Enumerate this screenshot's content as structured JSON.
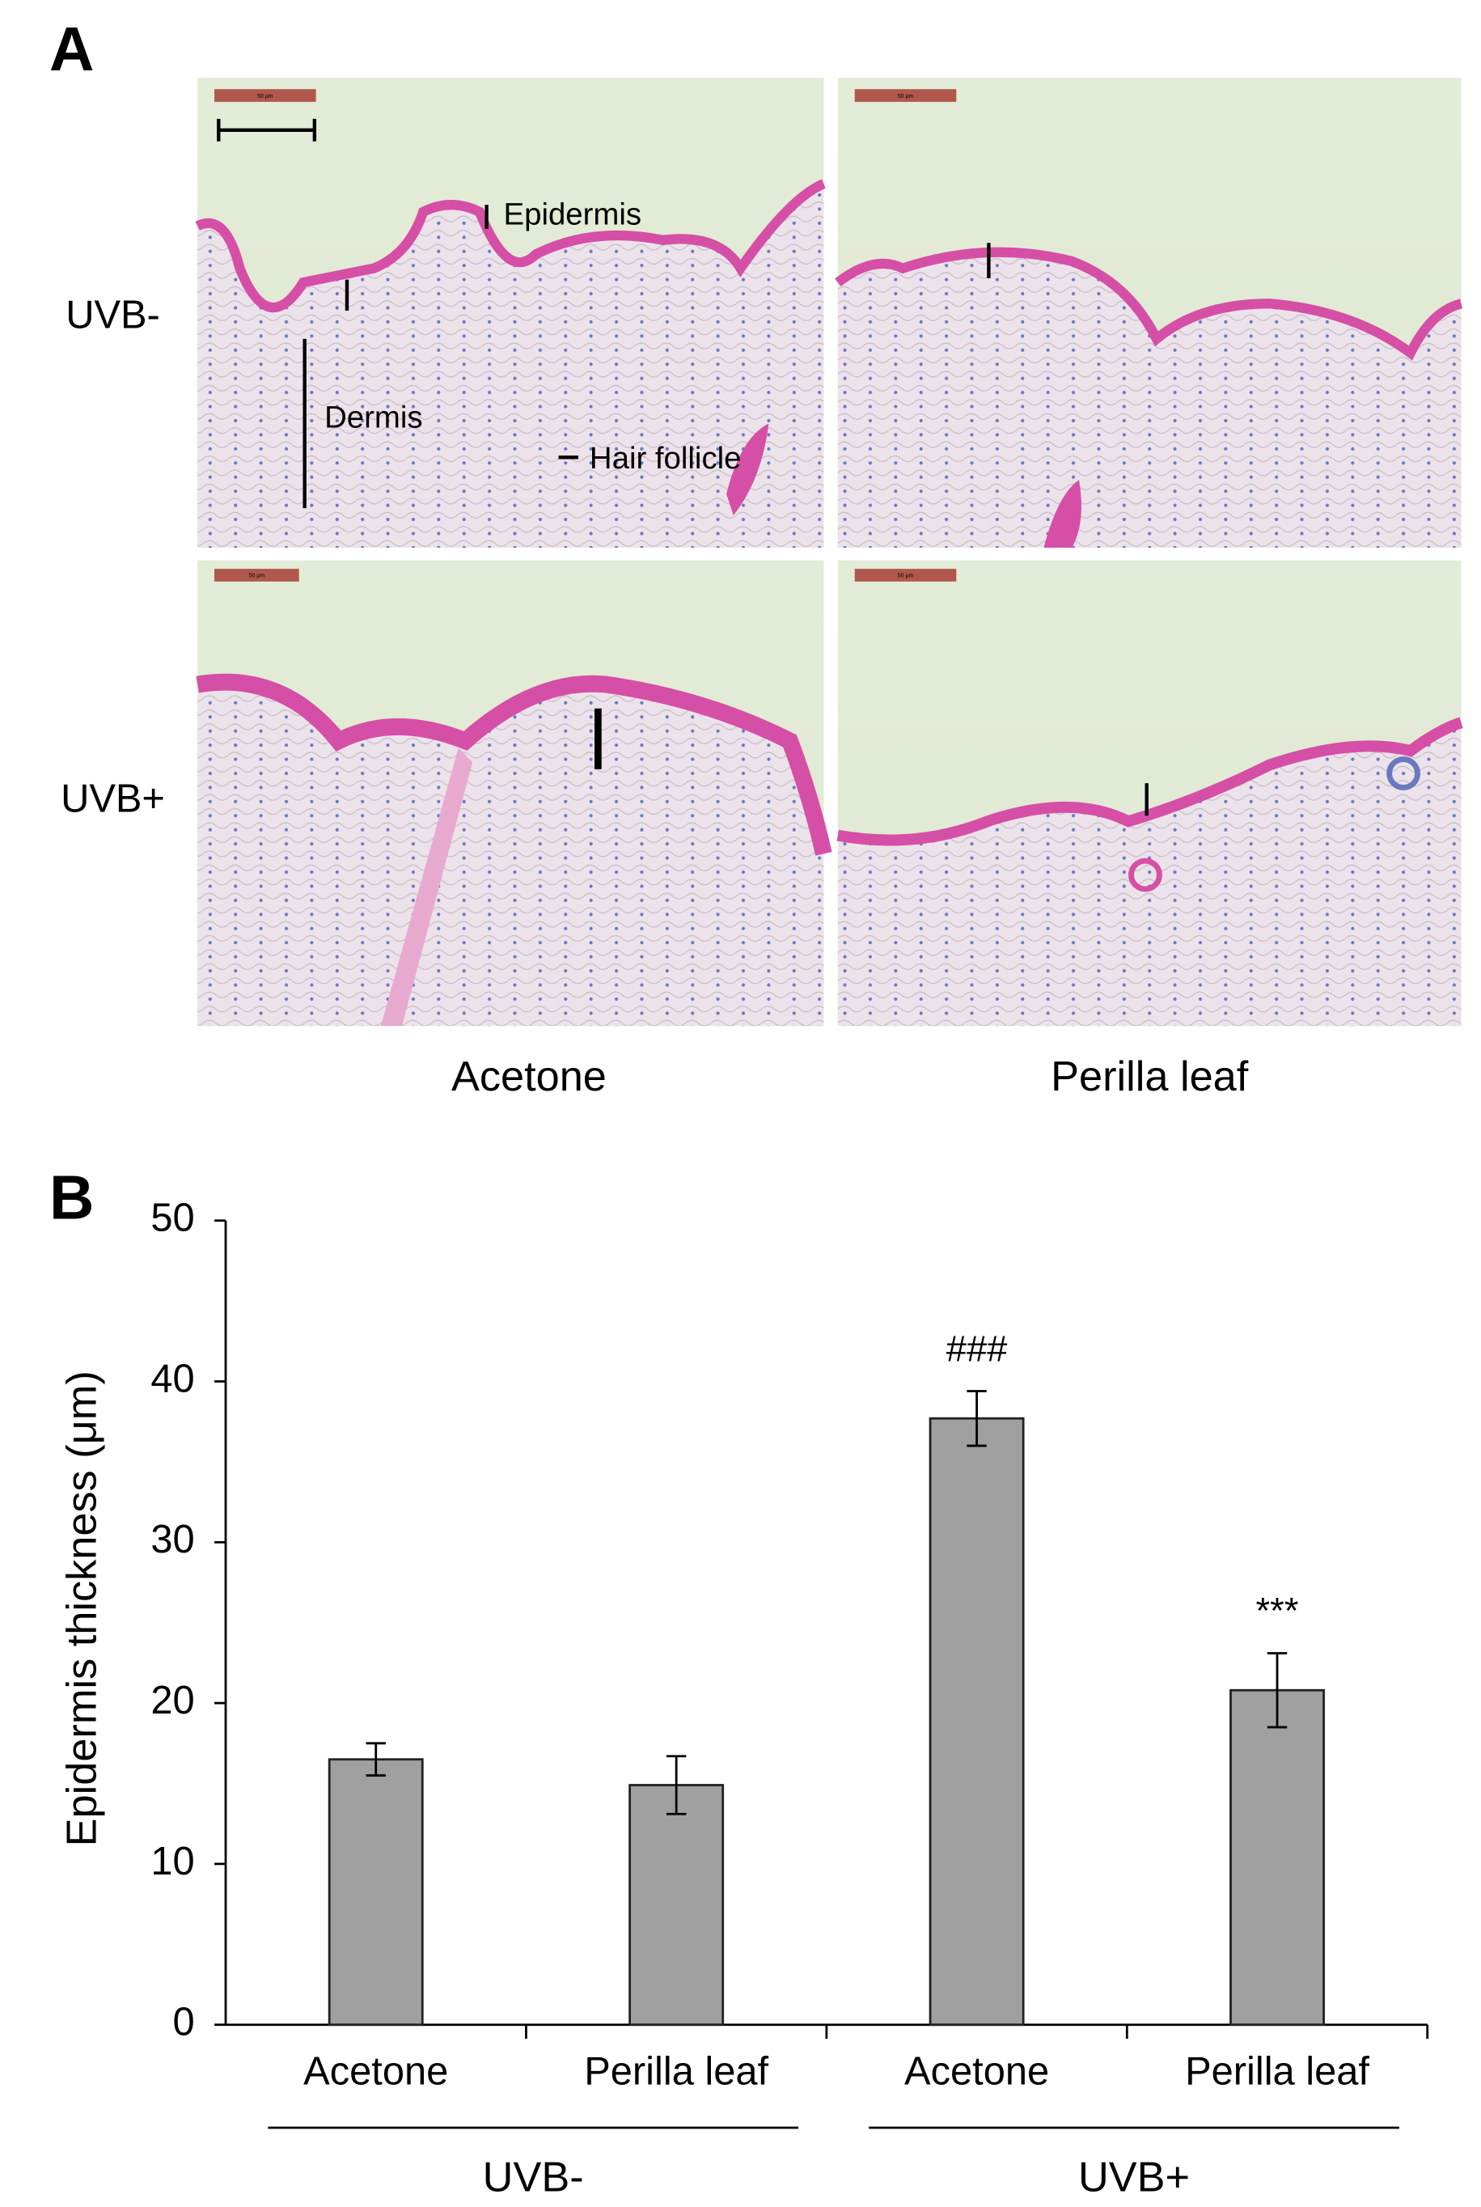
{
  "panel_a": {
    "label": "A",
    "rows": [
      "UVB-",
      "UVB+"
    ],
    "columns": [
      "Acetone",
      "Perilla leaf"
    ],
    "scale_bar": "50 μm",
    "annotations": {
      "epidermis": "Epidermis",
      "dermis": "Dermis",
      "hair_follicle": "Hair follicle"
    }
  },
  "chart_data": {
    "type": "bar",
    "panel_label": "B",
    "ylabel": "Epidermis thickness (μm)",
    "categories": [
      "Acetone",
      "Perilla leaf",
      "Acetone",
      "Perilla leaf"
    ],
    "groups": [
      "UVB-",
      "UVB+"
    ],
    "values": [
      16.5,
      14.9,
      37.7,
      20.8
    ],
    "errors": [
      1.0,
      1.8,
      1.7,
      2.3
    ],
    "annotations": [
      null,
      null,
      "###",
      "***"
    ],
    "color": "#a0a0a0",
    "ylim": [
      0,
      50
    ],
    "yticks": [
      0,
      10,
      20,
      30,
      40,
      50
    ]
  }
}
